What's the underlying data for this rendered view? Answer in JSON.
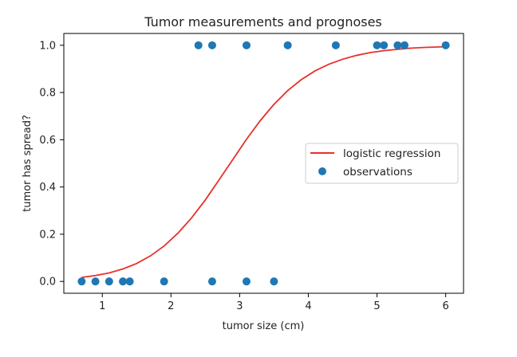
{
  "chart_data": {
    "type": "scatter",
    "title": "Tumor measurements and prognoses",
    "xlabel": "tumor size (cm)",
    "ylabel": "tumor has spread?",
    "xlim": [
      0.44,
      6.26
    ],
    "ylim": [
      -0.05,
      1.05
    ],
    "xticks": [
      1,
      2,
      3,
      4,
      5,
      6
    ],
    "yticks": [
      0.0,
      0.2,
      0.4,
      0.6,
      0.8,
      1.0
    ],
    "xtick_labels": [
      "1",
      "2",
      "3",
      "4",
      "5",
      "6"
    ],
    "ytick_labels": [
      "0.0",
      "0.2",
      "0.4",
      "0.6",
      "0.8",
      "1.0"
    ],
    "grid": false,
    "legend_position": "center-right",
    "series": [
      {
        "name": "logistic regression",
        "kind": "line",
        "color": "#e8302a",
        "x": [
          0.7,
          0.9,
          1.1,
          1.3,
          1.5,
          1.7,
          1.9,
          2.1,
          2.3,
          2.5,
          2.7,
          2.9,
          3.1,
          3.3,
          3.5,
          3.7,
          3.9,
          4.1,
          4.3,
          4.5,
          4.7,
          4.9,
          5.1,
          5.3,
          5.5,
          5.7,
          6.0
        ],
        "y": [
          0.017,
          0.025,
          0.036,
          0.053,
          0.076,
          0.108,
          0.15,
          0.204,
          0.269,
          0.345,
          0.43,
          0.516,
          0.602,
          0.681,
          0.75,
          0.808,
          0.855,
          0.892,
          0.92,
          0.941,
          0.957,
          0.969,
          0.977,
          0.983,
          0.988,
          0.991,
          0.994
        ]
      },
      {
        "name": "observations",
        "kind": "scatter",
        "color": "#1f77b4",
        "x": [
          0.7,
          0.9,
          1.1,
          1.3,
          1.4,
          1.9,
          2.6,
          3.1,
          3.5,
          2.4,
          2.6,
          3.1,
          3.7,
          4.4,
          5.0,
          5.1,
          5.3,
          5.4,
          6.0
        ],
        "y": [
          0,
          0,
          0,
          0,
          0,
          0,
          0,
          0,
          0,
          1,
          1,
          1,
          1,
          1,
          1,
          1,
          1,
          1,
          1
        ]
      }
    ]
  }
}
